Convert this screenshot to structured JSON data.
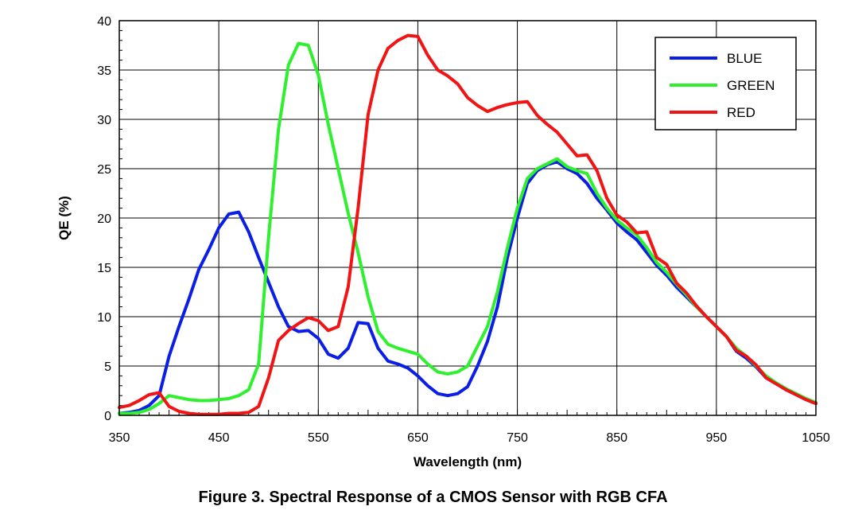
{
  "figure_caption": "Figure 3. Spectral Response of a CMOS Sensor with RGB CFA",
  "chart_data": {
    "type": "line",
    "xlabel": "Wavelength (nm)",
    "ylabel": "QE (%)",
    "xlim": [
      350,
      1050
    ],
    "ylim": [
      0,
      40
    ],
    "xticks": [
      350,
      450,
      550,
      650,
      750,
      850,
      950,
      1050
    ],
    "yticks": [
      0,
      5,
      10,
      15,
      20,
      25,
      30,
      35,
      40
    ],
    "grid": true,
    "legend_position": "top-right",
    "series": [
      {
        "name": "BLUE",
        "color": "#0a1ee6",
        "x": [
          350,
          360,
          370,
          380,
          390,
          400,
          410,
          420,
          430,
          440,
          450,
          460,
          470,
          480,
          490,
          500,
          510,
          520,
          530,
          540,
          550,
          560,
          570,
          580,
          590,
          600,
          610,
          620,
          630,
          640,
          650,
          660,
          670,
          680,
          690,
          700,
          710,
          720,
          730,
          740,
          750,
          760,
          770,
          780,
          790,
          800,
          810,
          820,
          830,
          840,
          850,
          860,
          870,
          880,
          890,
          900,
          910,
          920,
          930,
          940,
          950,
          960,
          970,
          980,
          990,
          1000,
          1010,
          1020,
          1030,
          1040,
          1050
        ],
        "values": [
          0.2,
          0.3,
          0.5,
          1.0,
          2.0,
          6.0,
          9.0,
          11.8,
          14.8,
          16.8,
          19.0,
          20.4,
          20.6,
          18.6,
          16.0,
          13.5,
          11.0,
          9.0,
          8.5,
          8.6,
          7.8,
          6.2,
          5.8,
          6.8,
          9.4,
          9.3,
          6.8,
          5.5,
          5.2,
          4.8,
          4.0,
          3.0,
          2.2,
          2.0,
          2.2,
          2.9,
          5.0,
          7.5,
          11.0,
          16.0,
          20.0,
          23.5,
          24.8,
          25.4,
          25.7,
          25.0,
          24.5,
          23.5,
          22.0,
          20.8,
          19.5,
          18.6,
          17.8,
          16.5,
          15.2,
          14.2,
          13.0,
          12.0,
          11.0,
          10.0,
          9.0,
          8.0,
          6.5,
          5.8,
          4.9,
          3.8,
          3.2,
          2.6,
          2.1,
          1.6,
          1.2
        ]
      },
      {
        "name": "GREEN",
        "color": "#2ef02e",
        "x": [
          350,
          360,
          370,
          380,
          390,
          400,
          410,
          420,
          430,
          440,
          450,
          460,
          470,
          480,
          490,
          500,
          510,
          520,
          530,
          540,
          550,
          560,
          570,
          580,
          590,
          600,
          610,
          620,
          630,
          640,
          650,
          660,
          670,
          680,
          690,
          700,
          710,
          720,
          730,
          740,
          750,
          760,
          770,
          780,
          790,
          800,
          810,
          820,
          830,
          840,
          850,
          860,
          870,
          880,
          890,
          900,
          910,
          920,
          930,
          940,
          950,
          960,
          970,
          980,
          990,
          1000,
          1010,
          1020,
          1030,
          1040,
          1050
        ],
        "values": [
          0.2,
          0.2,
          0.3,
          0.6,
          1.2,
          2.0,
          1.8,
          1.6,
          1.5,
          1.5,
          1.6,
          1.7,
          2.0,
          2.6,
          5.2,
          18.0,
          29.0,
          35.5,
          37.7,
          37.5,
          34.5,
          29.5,
          25.0,
          20.5,
          16.5,
          12.0,
          8.5,
          7.2,
          6.8,
          6.5,
          6.2,
          5.2,
          4.4,
          4.2,
          4.4,
          5.0,
          7.0,
          9.0,
          12.5,
          17.0,
          21.0,
          24.0,
          25.0,
          25.5,
          26.0,
          25.2,
          24.8,
          24.5,
          22.5,
          21.0,
          19.8,
          19.0,
          18.3,
          17.0,
          15.5,
          14.5,
          13.3,
          12.2,
          11.0,
          10.0,
          9.0,
          8.0,
          6.8,
          6.0,
          5.0,
          4.0,
          3.3,
          2.7,
          2.2,
          1.7,
          1.3
        ]
      },
      {
        "name": "RED",
        "color": "#f01414",
        "x": [
          350,
          360,
          370,
          380,
          390,
          400,
          410,
          420,
          430,
          440,
          450,
          460,
          470,
          480,
          490,
          500,
          510,
          520,
          530,
          540,
          550,
          560,
          570,
          580,
          590,
          600,
          610,
          620,
          630,
          640,
          650,
          660,
          670,
          680,
          690,
          700,
          710,
          720,
          730,
          740,
          750,
          760,
          770,
          780,
          790,
          800,
          810,
          820,
          830,
          840,
          850,
          860,
          870,
          880,
          890,
          900,
          910,
          920,
          930,
          940,
          950,
          960,
          970,
          980,
          990,
          1000,
          1010,
          1020,
          1030,
          1040,
          1050
        ],
        "values": [
          0.8,
          1.0,
          1.5,
          2.1,
          2.3,
          0.9,
          0.4,
          0.2,
          0.1,
          0.1,
          0.1,
          0.2,
          0.2,
          0.3,
          0.9,
          3.8,
          7.6,
          8.6,
          9.3,
          9.9,
          9.6,
          8.6,
          9.0,
          13.0,
          21.0,
          30.5,
          35.0,
          37.2,
          38.0,
          38.5,
          38.4,
          36.5,
          35.0,
          34.4,
          33.6,
          32.2,
          31.4,
          30.8,
          31.2,
          31.5,
          31.7,
          31.8,
          30.4,
          29.5,
          28.7,
          27.5,
          26.3,
          26.4,
          24.8,
          22.0,
          20.3,
          19.6,
          18.5,
          18.6,
          16.0,
          15.3,
          13.4,
          12.4,
          11.1,
          10.0,
          9.0,
          8.0,
          6.6,
          6.0,
          5.1,
          3.8,
          3.2,
          2.6,
          2.1,
          1.6,
          1.2
        ]
      }
    ]
  }
}
